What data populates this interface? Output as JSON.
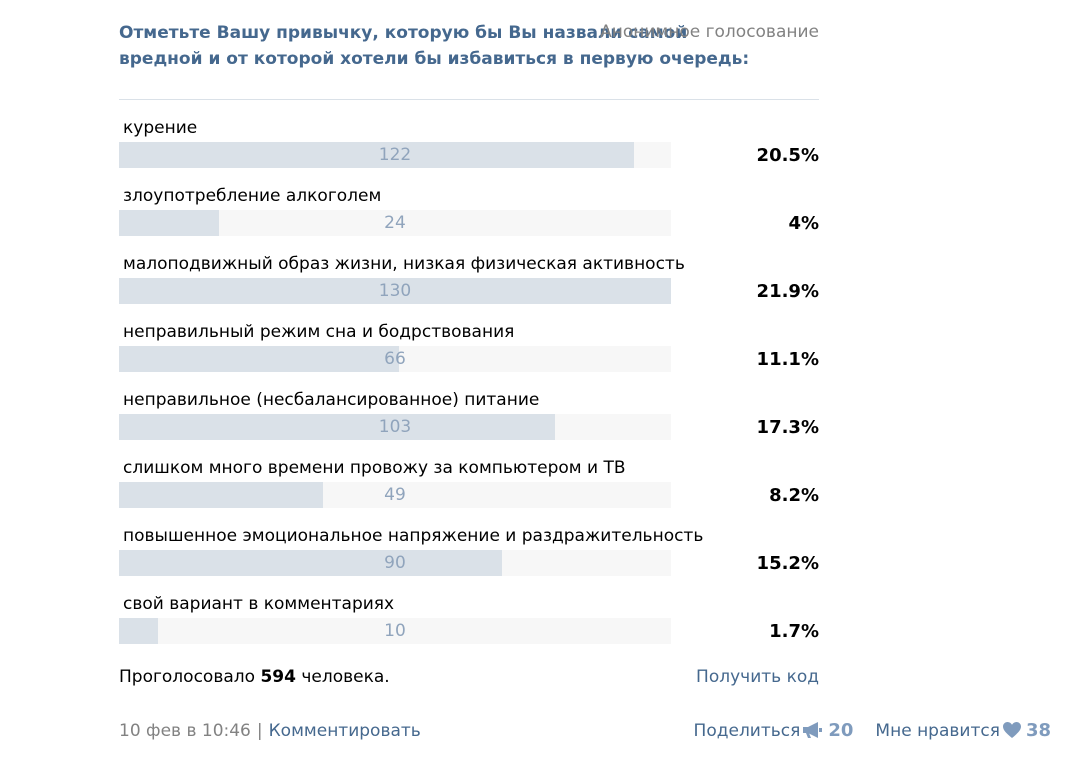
{
  "poll": {
    "question": "Отметьте Вашу привычку, которую бы Вы назвали самой вредной и от которой хотели бы избавиться в первую очередь:",
    "type": "Анонимное голосование",
    "options": [
      {
        "label": "курение",
        "count": "122",
        "percent": "20.5%",
        "fill": 0.933
      },
      {
        "label": "злоупотребление алкоголем",
        "count": "24",
        "percent": "4%",
        "fill": 0.182
      },
      {
        "label": "малоподвижный образ жизни, низкая физическая активность",
        "count": "130",
        "percent": "21.9%",
        "fill": 1.0
      },
      {
        "label": "неправильный режим сна и бодрствования",
        "count": "66",
        "percent": "11.1%",
        "fill": 0.507
      },
      {
        "label": "неправильное (несбалансированное) питание",
        "count": "103",
        "percent": "17.3%",
        "fill": 0.79
      },
      {
        "label": "слишком много времени провожу за компьютером и ТВ",
        "count": "49",
        "percent": "8.2%",
        "fill": 0.37
      },
      {
        "label": "повышенное эмоциональное напряжение и раздражительность",
        "count": "90",
        "percent": "15.2%",
        "fill": 0.694
      },
      {
        "label": "свой вариант в комментариях",
        "count": "10",
        "percent": "1.7%",
        "fill": 0.071
      }
    ],
    "voted_prefix": "Проголосовало",
    "voted_total": "594",
    "voted_suffix": "человека.",
    "get_code": "Получить код"
  },
  "footer": {
    "date": "10 фев в 10:46",
    "separator": "|",
    "comment": "Комментировать",
    "share_label": "Поделиться",
    "share_count": "20",
    "like_label": "Мне нравится",
    "like_count": "38"
  },
  "colors": {
    "link": "#45688e",
    "bar_fill": "#dae1e8",
    "bar_track": "#f7f7f7",
    "count_text": "#90a4bc",
    "muted": "#828282"
  },
  "icons": {
    "share": "megaphone-icon",
    "like": "heart-icon"
  }
}
